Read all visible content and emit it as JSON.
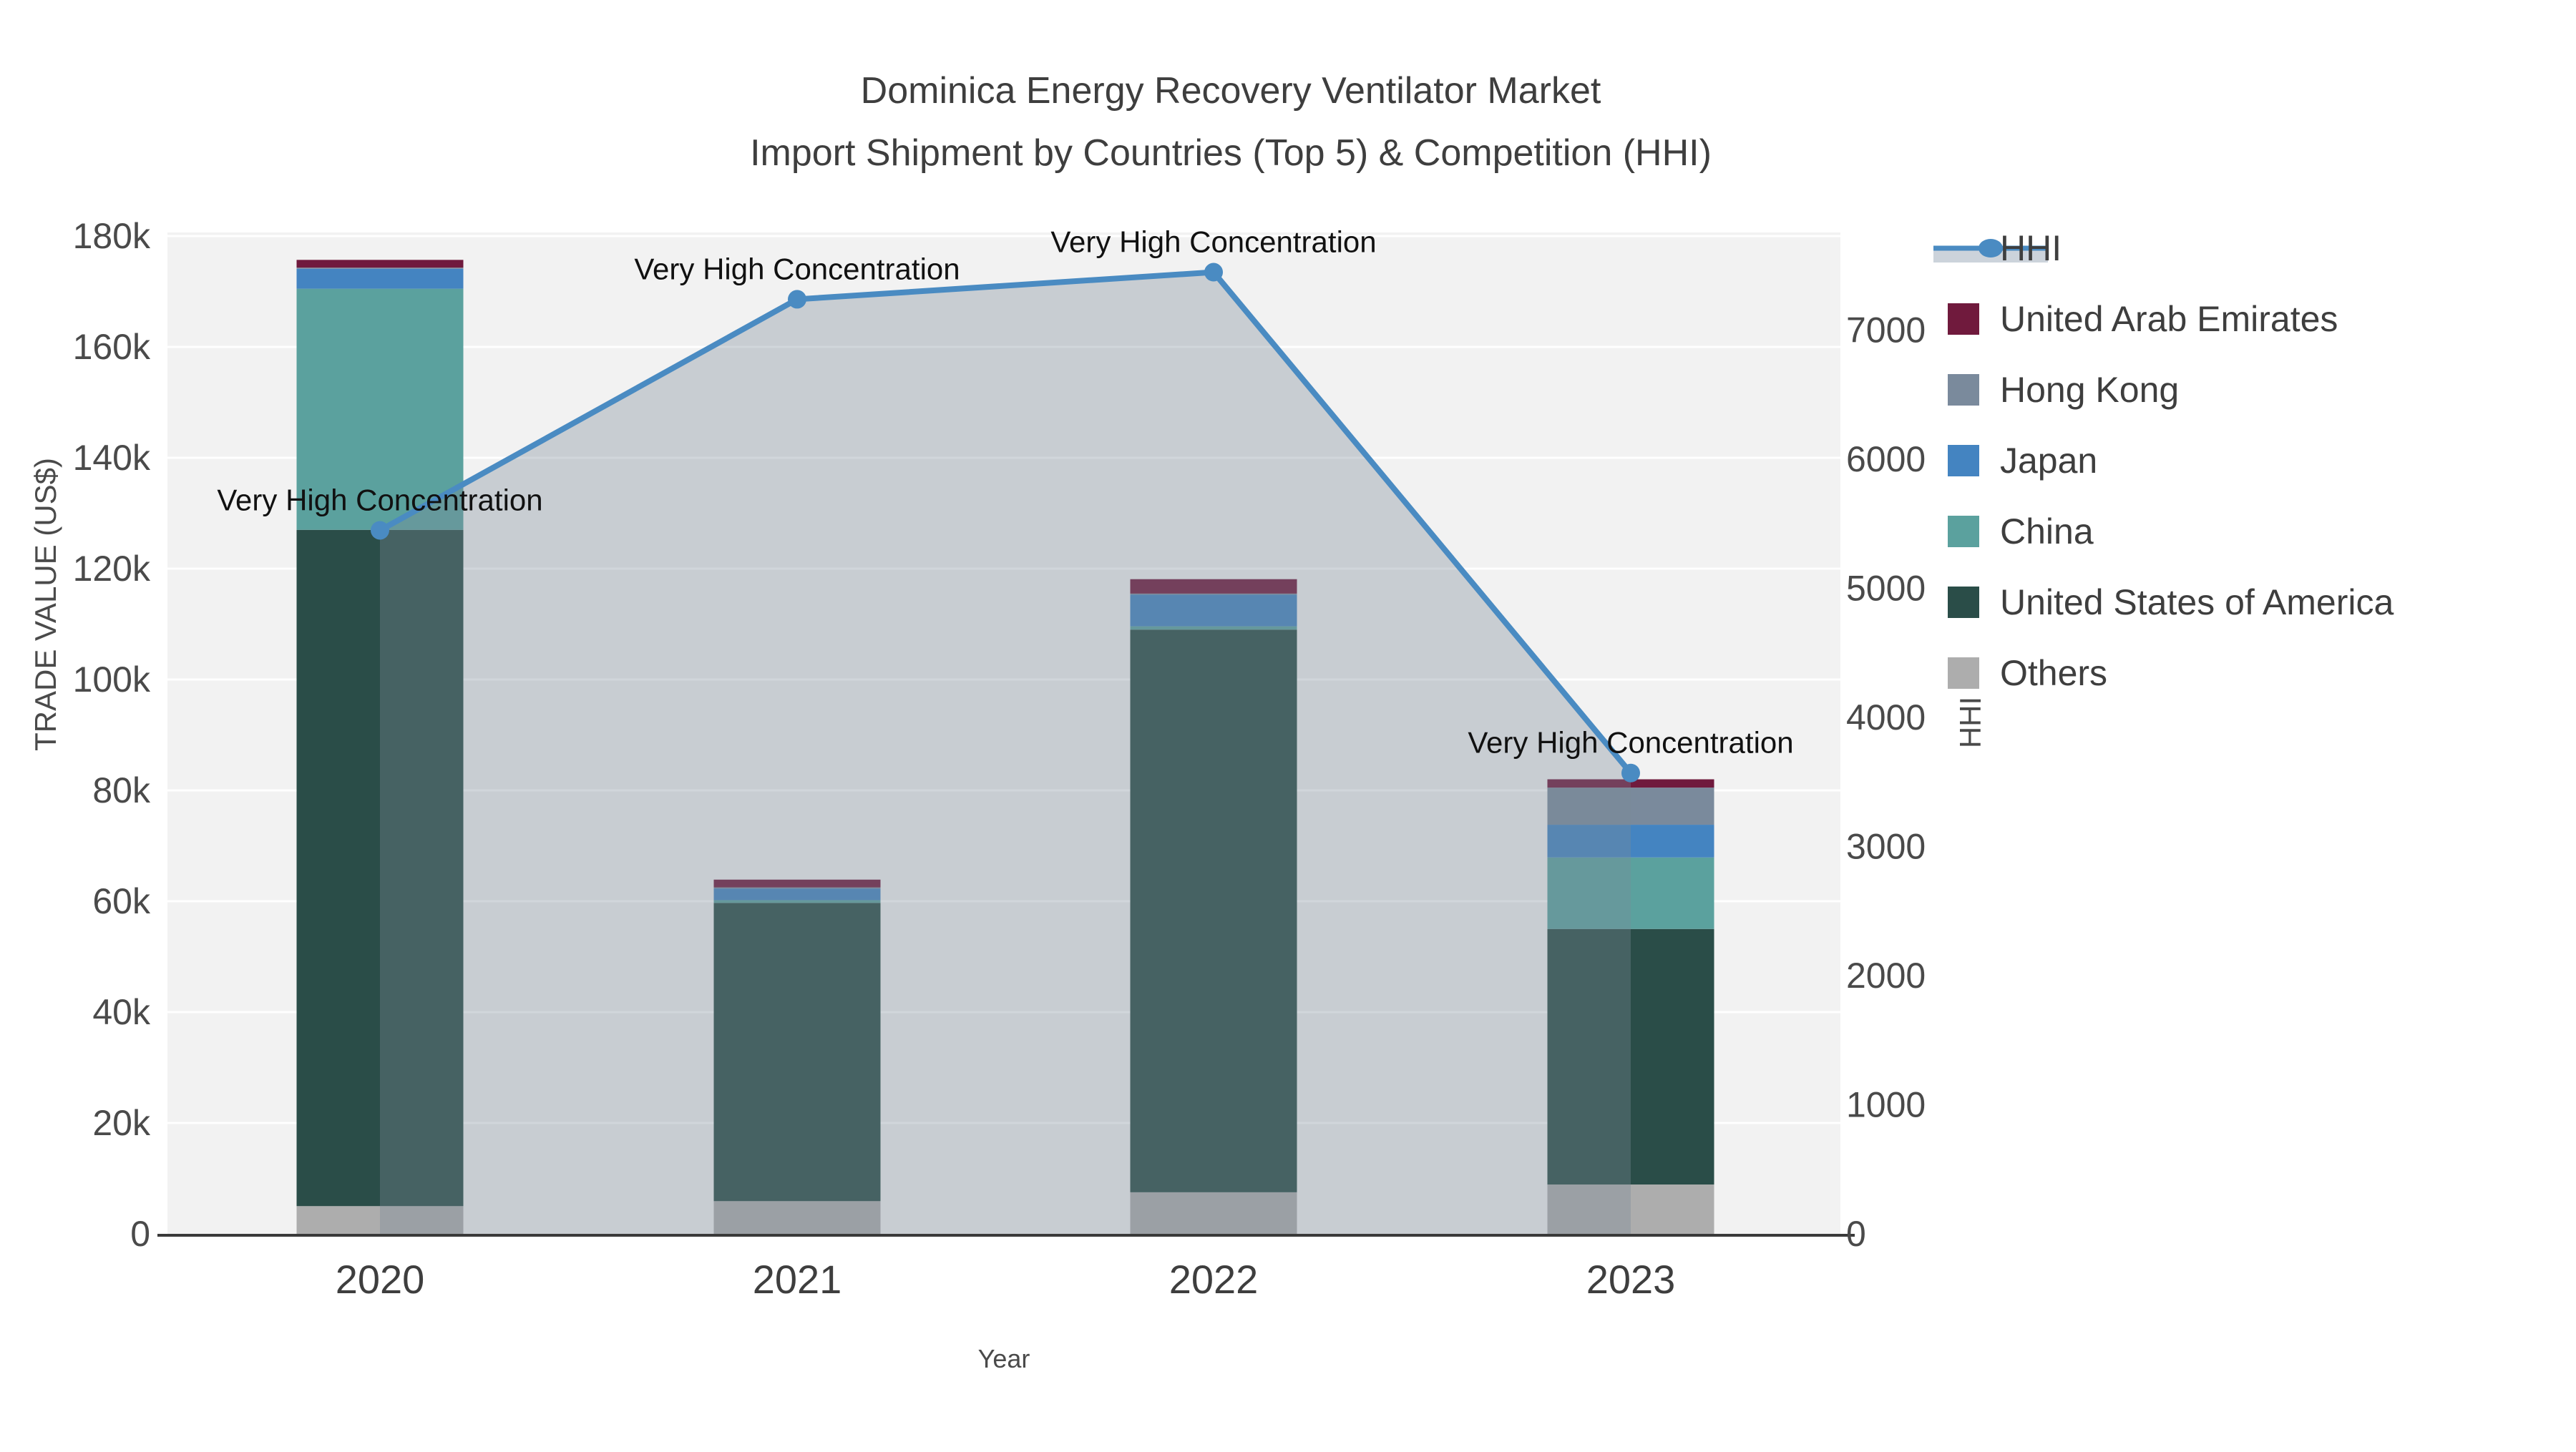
{
  "title": {
    "line1": "Dominica Energy Recovery Ventilator Market",
    "line2": "Import Shipment by Countries (Top 5) & Competition (HHI)"
  },
  "axes": {
    "x": {
      "title": "Year",
      "categories": [
        "2020",
        "2021",
        "2022",
        "2023"
      ]
    },
    "left": {
      "title": "TRADE VALUE (US$)",
      "tick_labels": [
        "0",
        "20k",
        "40k",
        "60k",
        "80k",
        "100k",
        "120k",
        "140k",
        "160k",
        "180k"
      ],
      "tick_values": [
        0,
        20000,
        40000,
        60000,
        80000,
        100000,
        120000,
        140000,
        160000,
        180000
      ],
      "max": 180000
    },
    "right": {
      "title": "HHI",
      "tick_labels": [
        "0",
        "1000",
        "2000",
        "3000",
        "4000",
        "5000",
        "6000",
        "7000"
      ],
      "tick_values": [
        0,
        1000,
        2000,
        3000,
        4000,
        5000,
        6000,
        7000
      ],
      "max": 7730
    }
  },
  "chart_data": {
    "type": "combo: stacked-bar + line-with-area",
    "categories": [
      2020,
      2021,
      2022,
      2023
    ],
    "bar_series": [
      {
        "name": "Others",
        "color": "#adadad",
        "values": [
          5000,
          5900,
          7500,
          8900
        ]
      },
      {
        "name": "United States of America",
        "color": "#2a4d48",
        "values": [
          122000,
          53800,
          101500,
          46100
        ]
      },
      {
        "name": "China",
        "color": "#5ba19e",
        "values": [
          43500,
          500,
          600,
          12900
        ]
      },
      {
        "name": "Japan",
        "color": "#4484c1",
        "values": [
          3600,
          2100,
          5700,
          5900
        ]
      },
      {
        "name": "Hong Kong",
        "color": "#7a8a9c",
        "values": [
          200,
          200,
          200,
          6700
        ]
      },
      {
        "name": "United Arab Emirates",
        "color": "#701a3d",
        "values": [
          1400,
          1400,
          2600,
          1500
        ]
      }
    ],
    "line_series": {
      "name": "HHI",
      "color": "#4a8bc2",
      "area_fill": "rgba(124,137,152,0.35)",
      "values": [
        5450,
        7240,
        7450,
        3570
      ]
    },
    "annotations": [
      "Very High Concentration",
      "Very High Concentration",
      "Very High Concentration",
      "Very High Concentration"
    ],
    "xlabel": "Year",
    "ylabel_left": "TRADE VALUE (US$)",
    "ylabel_right": "HHI",
    "ylim_left": [
      0,
      180000
    ],
    "ylim_right": [
      0,
      7730
    ],
    "grid": true,
    "legend_position": "right"
  },
  "legend": {
    "items": [
      {
        "label": "HHI",
        "type": "line",
        "color": "#4a8bc2",
        "band_color": "#ccd3db"
      },
      {
        "label": "United Arab Emirates",
        "type": "swatch",
        "color": "#701a3d"
      },
      {
        "label": "Hong Kong",
        "type": "swatch",
        "color": "#7a8a9c"
      },
      {
        "label": "Japan",
        "type": "swatch",
        "color": "#4484c1"
      },
      {
        "label": "China",
        "type": "swatch",
        "color": "#5ba19e"
      },
      {
        "label": "United States of America",
        "type": "swatch",
        "color": "#2a4d48"
      },
      {
        "label": "Others",
        "type": "swatch",
        "color": "#adadad"
      }
    ]
  },
  "colors": {
    "plot_bg": "#f2f2f2",
    "grid": "#ffffff",
    "axis_line": "#3a3a3a",
    "text": "#3e3e3e",
    "tick_text": "#4a4a4a",
    "annotation_text": "#111111"
  }
}
